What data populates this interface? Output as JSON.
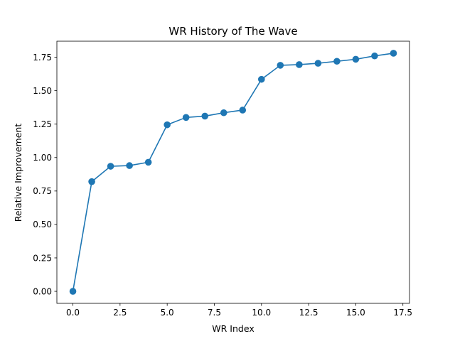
{
  "chart_data": {
    "type": "line",
    "title": "WR History of The Wave",
    "xlabel": "WR Index",
    "ylabel": "Relative Improvement",
    "xlim": [
      -0.85,
      17.85
    ],
    "ylim": [
      -0.09,
      1.87
    ],
    "xticks": [
      0,
      2.5,
      5,
      7.5,
      10,
      12.5,
      15,
      17.5
    ],
    "xtick_labels": [
      "0.0",
      "2.5",
      "5.0",
      "7.5",
      "10.0",
      "12.5",
      "15.0",
      "17.5"
    ],
    "yticks": [
      0,
      0.25,
      0.5,
      0.75,
      1.0,
      1.25,
      1.5,
      1.75
    ],
    "ytick_labels": [
      "0.00",
      "0.25",
      "0.50",
      "0.75",
      "1.00",
      "1.25",
      "1.50",
      "1.75"
    ],
    "grid": false,
    "series": [
      {
        "color": "#1f77b4",
        "marker": "circle",
        "x": [
          0,
          1,
          2,
          3,
          4,
          5,
          6,
          7,
          8,
          9,
          10,
          11,
          12,
          13,
          14,
          15,
          16,
          17
        ],
        "y": [
          0.0,
          0.82,
          0.935,
          0.94,
          0.965,
          1.245,
          1.3,
          1.31,
          1.335,
          1.355,
          1.585,
          1.69,
          1.695,
          1.705,
          1.72,
          1.735,
          1.76,
          1.78
        ]
      }
    ]
  }
}
